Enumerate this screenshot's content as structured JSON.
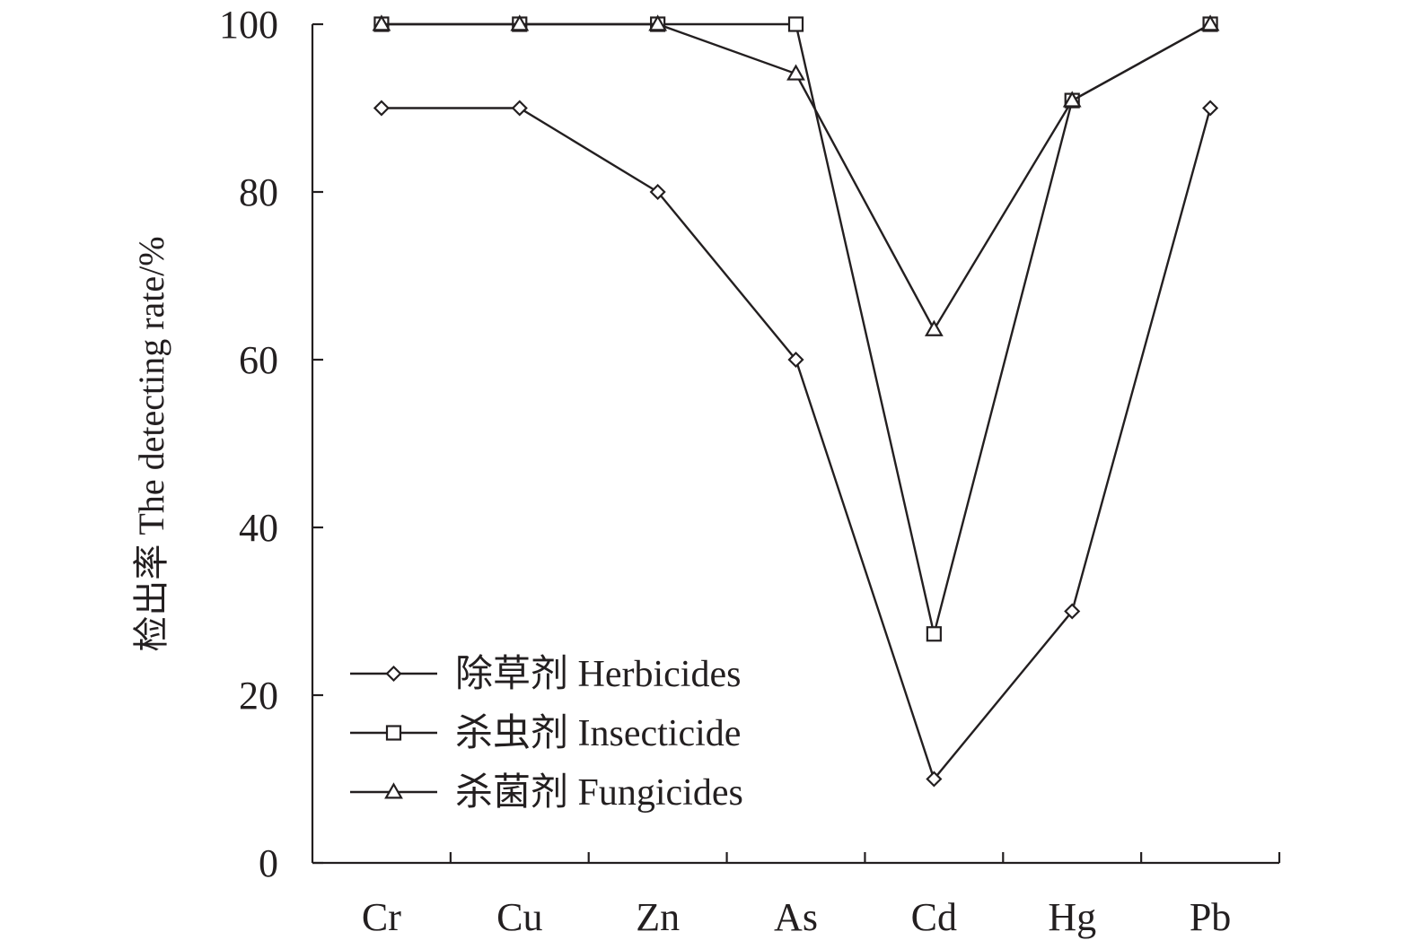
{
  "chart_data": {
    "type": "line",
    "title": "",
    "xlabel": "",
    "ylabel": "检出率 The detecting rate/%",
    "categories": [
      "Cr",
      "Cu",
      "Zn",
      "As",
      "Cd",
      "Hg",
      "Pb"
    ],
    "ylim": [
      0,
      100
    ],
    "yticks": [
      0,
      20,
      40,
      60,
      80,
      100
    ],
    "grid": false,
    "legend_position": "bottom-left",
    "line_color": "#231f20",
    "series": [
      {
        "name": "除草剂 Herbicides",
        "marker": "diamond",
        "values": [
          90,
          90,
          80,
          60,
          10,
          30,
          90
        ]
      },
      {
        "name": "杀虫剂 Insecticide",
        "marker": "square",
        "values": [
          100,
          100,
          100,
          100,
          27.3,
          90.9,
          100
        ]
      },
      {
        "name": "杀菌剂 Fungicides",
        "marker": "triangle",
        "values": [
          100,
          100,
          100,
          94.1,
          63.6,
          90.9,
          100
        ]
      }
    ]
  }
}
